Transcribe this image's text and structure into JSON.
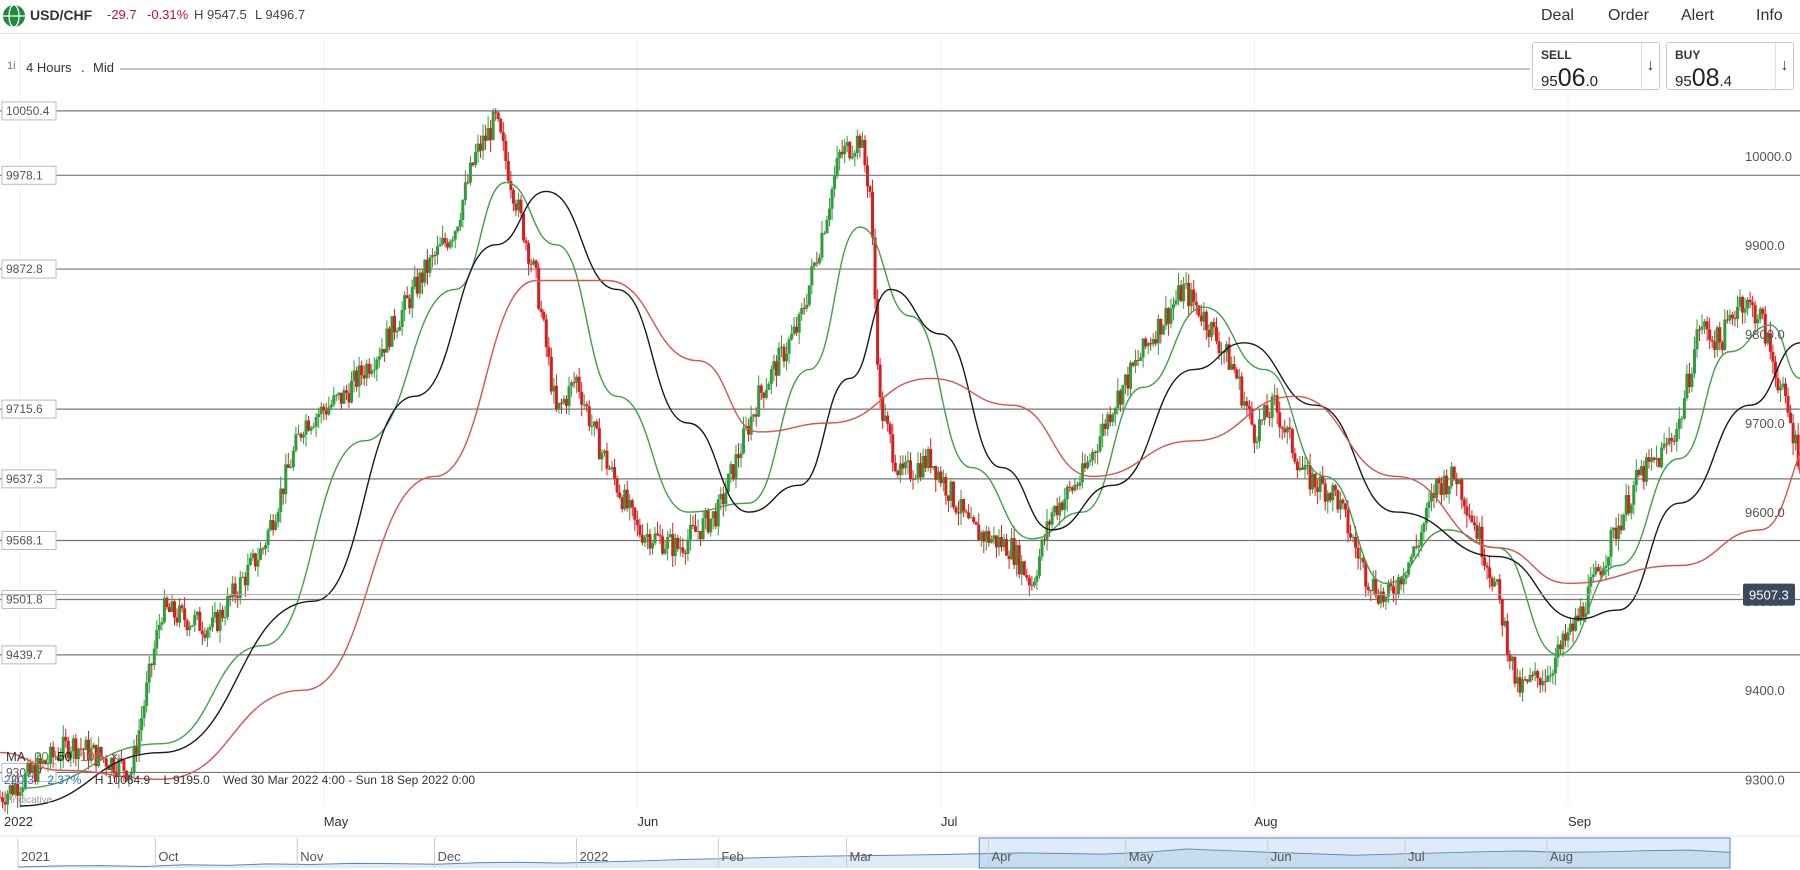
{
  "header": {
    "symbol": "USD/CHF",
    "change": "-29.7",
    "change_pct": "-0.31%",
    "high": "H 9547.5",
    "low": "L 9496.7",
    "buttons": [
      "Deal",
      "Order",
      "Alert",
      "Info"
    ]
  },
  "toolbar": {
    "interval_prefix": "1i",
    "timeframe": "4 Hours",
    "separator": ".",
    "price_type": "Mid"
  },
  "sell": {
    "label": "SELL",
    "prefix": "95",
    "big": "06",
    "suffix": ".0"
  },
  "buy": {
    "label": "BUY",
    "prefix": "95",
    "big": "08",
    "suffix": ".4"
  },
  "legend": {
    "ma_label": "MA",
    "ma_periods": [
      "20",
      "50",
      "100"
    ],
    "close": "×"
  },
  "info": {
    "value": "220.3",
    "pct": "2.37%",
    "high": "H 10064.9",
    "low": "L 9195.0",
    "range": "Wed 30 Mar 2022 4:00 - Sun 18 Sep 2022 0:00",
    "indicative": "Indicative"
  },
  "colors": {
    "up": "#2e9e3a",
    "down": "#d62020",
    "ma20": "#3fa04a",
    "ma50": "#1a1a1a",
    "ma100": "#d9534f",
    "current_price_bg": "#3a4a5c",
    "navigator_fill": "#b8d4ee"
  },
  "chart_data": {
    "type": "line",
    "title": "",
    "xlabel": "",
    "ylabel": "",
    "ylim": [
      9270,
      10130
    ],
    "y_ticks": [
      9300.0,
      9400.0,
      9500.0,
      9600.0,
      9700.0,
      9800.0,
      9900.0,
      10000.0
    ],
    "y_tick_labels": [
      "9300.0",
      "9400.0",
      "9500.0",
      "9600.0",
      "9700.0",
      "9800.0",
      "9900.0",
      "10000.0"
    ],
    "x_range": [
      "2022-03-30",
      "2022-09-18"
    ],
    "x_ticks": [
      {
        "date": "2022-04-01",
        "label": "2022"
      },
      {
        "date": "2022-05-01",
        "label": "May"
      },
      {
        "date": "2022-06-01",
        "label": "Jun"
      },
      {
        "date": "2022-07-01",
        "label": "Jul"
      },
      {
        "date": "2022-08-01",
        "label": "Aug"
      },
      {
        "date": "2022-09-01",
        "label": "Sep"
      }
    ],
    "current_price": {
      "value": 9507.3,
      "label": "9507.3"
    },
    "horizontal_levels": [
      {
        "value": 10050.4,
        "label": "10050.4"
      },
      {
        "value": 9978.1,
        "label": "9978.1"
      },
      {
        "value": 9872.8,
        "label": "9872.8"
      },
      {
        "value": 9715.6,
        "label": "9715.6"
      },
      {
        "value": 9637.3,
        "label": "9637.3"
      },
      {
        "value": 9568.1,
        "label": "9568.1"
      },
      {
        "value": 9501.8,
        "label": "9501.8"
      },
      {
        "value": 9439.7,
        "label": "9439.7"
      },
      {
        "value": 9307.7,
        "label": "9307.7"
      }
    ],
    "price_path": [
      {
        "date": "2022-03-30",
        "value": 9280
      },
      {
        "date": "2022-04-06",
        "value": 9340
      },
      {
        "date": "2022-04-12",
        "value": 9310
      },
      {
        "date": "2022-04-15",
        "value": 9490
      },
      {
        "date": "2022-04-20",
        "value": 9470
      },
      {
        "date": "2022-04-25",
        "value": 9560
      },
      {
        "date": "2022-04-29",
        "value": 9700
      },
      {
        "date": "2022-05-03",
        "value": 9730
      },
      {
        "date": "2022-05-07",
        "value": 9790
      },
      {
        "date": "2022-05-11",
        "value": 9870
      },
      {
        "date": "2022-05-14",
        "value": 9920
      },
      {
        "date": "2022-05-16",
        "value": 10000
      },
      {
        "date": "2022-05-18",
        "value": 10040
      },
      {
        "date": "2022-05-20",
        "value": 9950
      },
      {
        "date": "2022-05-22",
        "value": 9860
      },
      {
        "date": "2022-05-24",
        "value": 9710
      },
      {
        "date": "2022-05-26",
        "value": 9750
      },
      {
        "date": "2022-05-28",
        "value": 9680
      },
      {
        "date": "2022-06-01",
        "value": 9580
      },
      {
        "date": "2022-06-05",
        "value": 9560
      },
      {
        "date": "2022-06-09",
        "value": 9600
      },
      {
        "date": "2022-06-13",
        "value": 9730
      },
      {
        "date": "2022-06-17",
        "value": 9810
      },
      {
        "date": "2022-06-19",
        "value": 9900
      },
      {
        "date": "2022-06-21",
        "value": 10000
      },
      {
        "date": "2022-06-23",
        "value": 10020
      },
      {
        "date": "2022-06-24",
        "value": 9960
      },
      {
        "date": "2022-06-25",
        "value": 9720
      },
      {
        "date": "2022-06-27",
        "value": 9640
      },
      {
        "date": "2022-06-30",
        "value": 9660
      },
      {
        "date": "2022-07-04",
        "value": 9580
      },
      {
        "date": "2022-07-08",
        "value": 9560
      },
      {
        "date": "2022-07-10",
        "value": 9520
      },
      {
        "date": "2022-07-12",
        "value": 9600
      },
      {
        "date": "2022-07-15",
        "value": 9640
      },
      {
        "date": "2022-07-18",
        "value": 9720
      },
      {
        "date": "2022-07-22",
        "value": 9800
      },
      {
        "date": "2022-07-25",
        "value": 9850
      },
      {
        "date": "2022-07-27",
        "value": 9820
      },
      {
        "date": "2022-07-30",
        "value": 9760
      },
      {
        "date": "2022-08-01",
        "value": 9690
      },
      {
        "date": "2022-08-03",
        "value": 9720
      },
      {
        "date": "2022-08-06",
        "value": 9640
      },
      {
        "date": "2022-08-09",
        "value": 9620
      },
      {
        "date": "2022-08-12",
        "value": 9530
      },
      {
        "date": "2022-08-14",
        "value": 9500
      },
      {
        "date": "2022-08-17",
        "value": 9560
      },
      {
        "date": "2022-08-19",
        "value": 9630
      },
      {
        "date": "2022-08-21",
        "value": 9640
      },
      {
        "date": "2022-08-23",
        "value": 9580
      },
      {
        "date": "2022-08-25",
        "value": 9510
      },
      {
        "date": "2022-08-27",
        "value": 9400
      },
      {
        "date": "2022-08-30",
        "value": 9420
      },
      {
        "date": "2022-09-02",
        "value": 9480
      },
      {
        "date": "2022-09-05",
        "value": 9560
      },
      {
        "date": "2022-09-08",
        "value": 9640
      },
      {
        "date": "2022-09-10",
        "value": 9660
      },
      {
        "date": "2022-09-12",
        "value": 9700
      },
      {
        "date": "2022-09-14",
        "value": 9810
      },
      {
        "date": "2022-09-16",
        "value": 9790
      },
      {
        "date": "2022-09-18",
        "value": 9840
      },
      {
        "date": "2022-09-20",
        "value": 9820
      },
      {
        "date": "2022-09-23",
        "value": 9700
      },
      {
        "date": "2022-09-25",
        "value": 9610
      },
      {
        "date": "2022-09-27",
        "value": 9560
      },
      {
        "date": "2022-09-29",
        "value": 9507
      }
    ],
    "series": [
      {
        "name": "MA 20",
        "points": [
          {
            "date": "2022-04-01",
            "value": 9290
          },
          {
            "date": "2022-04-15",
            "value": 9340
          },
          {
            "date": "2022-04-25",
            "value": 9450
          },
          {
            "date": "2022-05-05",
            "value": 9680
          },
          {
            "date": "2022-05-14",
            "value": 9850
          },
          {
            "date": "2022-05-19",
            "value": 9970
          },
          {
            "date": "2022-05-24",
            "value": 9900
          },
          {
            "date": "2022-05-30",
            "value": 9730
          },
          {
            "date": "2022-06-06",
            "value": 9600
          },
          {
            "date": "2022-06-12",
            "value": 9610
          },
          {
            "date": "2022-06-18",
            "value": 9760
          },
          {
            "date": "2022-06-23",
            "value": 9920
          },
          {
            "date": "2022-06-28",
            "value": 9820
          },
          {
            "date": "2022-07-04",
            "value": 9650
          },
          {
            "date": "2022-07-10",
            "value": 9570
          },
          {
            "date": "2022-07-15",
            "value": 9600
          },
          {
            "date": "2022-07-21",
            "value": 9740
          },
          {
            "date": "2022-07-27",
            "value": 9830
          },
          {
            "date": "2022-08-02",
            "value": 9760
          },
          {
            "date": "2022-08-08",
            "value": 9640
          },
          {
            "date": "2022-08-14",
            "value": 9520
          },
          {
            "date": "2022-08-20",
            "value": 9580
          },
          {
            "date": "2022-08-25",
            "value": 9560
          },
          {
            "date": "2022-08-31",
            "value": 9440
          },
          {
            "date": "2022-09-06",
            "value": 9540
          },
          {
            "date": "2022-09-12",
            "value": 9660
          },
          {
            "date": "2022-09-17",
            "value": 9780
          },
          {
            "date": "2022-09-21",
            "value": 9810
          },
          {
            "date": "2022-09-24",
            "value": 9750
          },
          {
            "date": "2022-09-29",
            "value": 9600
          }
        ]
      },
      {
        "name": "MA 50",
        "points": [
          {
            "date": "2022-04-01",
            "value": 9270
          },
          {
            "date": "2022-04-15",
            "value": 9330
          },
          {
            "date": "2022-04-30",
            "value": 9500
          },
          {
            "date": "2022-05-10",
            "value": 9730
          },
          {
            "date": "2022-05-18",
            "value": 9900
          },
          {
            "date": "2022-05-23",
            "value": 9960
          },
          {
            "date": "2022-05-30",
            "value": 9850
          },
          {
            "date": "2022-06-06",
            "value": 9700
          },
          {
            "date": "2022-06-12",
            "value": 9600
          },
          {
            "date": "2022-06-17",
            "value": 9630
          },
          {
            "date": "2022-06-22",
            "value": 9750
          },
          {
            "date": "2022-06-26",
            "value": 9850
          },
          {
            "date": "2022-07-01",
            "value": 9800
          },
          {
            "date": "2022-07-07",
            "value": 9650
          },
          {
            "date": "2022-07-12",
            "value": 9580
          },
          {
            "date": "2022-07-18",
            "value": 9630
          },
          {
            "date": "2022-07-26",
            "value": 9760
          },
          {
            "date": "2022-07-31",
            "value": 9790
          },
          {
            "date": "2022-08-07",
            "value": 9720
          },
          {
            "date": "2022-08-15",
            "value": 9600
          },
          {
            "date": "2022-08-25",
            "value": 9550
          },
          {
            "date": "2022-09-02",
            "value": 9480
          },
          {
            "date": "2022-09-06",
            "value": 9490
          },
          {
            "date": "2022-09-12",
            "value": 9610
          },
          {
            "date": "2022-09-19",
            "value": 9720
          },
          {
            "date": "2022-09-24",
            "value": 9790
          },
          {
            "date": "2022-09-29",
            "value": 9730
          }
        ]
      },
      {
        "name": "MA 100",
        "points": [
          {
            "date": "2022-03-30",
            "value": 9330
          },
          {
            "date": "2022-04-05",
            "value": 9310
          },
          {
            "date": "2022-04-15",
            "value": 9300
          },
          {
            "date": "2022-04-29",
            "value": 9400
          },
          {
            "date": "2022-05-12",
            "value": 9640
          },
          {
            "date": "2022-05-22",
            "value": 9860
          },
          {
            "date": "2022-05-29",
            "value": 9860
          },
          {
            "date": "2022-06-07",
            "value": 9770
          },
          {
            "date": "2022-06-13",
            "value": 9690
          },
          {
            "date": "2022-06-20",
            "value": 9700
          },
          {
            "date": "2022-06-30",
            "value": 9750
          },
          {
            "date": "2022-07-08",
            "value": 9720
          },
          {
            "date": "2022-07-16",
            "value": 9640
          },
          {
            "date": "2022-07-26",
            "value": 9680
          },
          {
            "date": "2022-08-05",
            "value": 9730
          },
          {
            "date": "2022-08-15",
            "value": 9640
          },
          {
            "date": "2022-08-25",
            "value": 9560
          },
          {
            "date": "2022-09-01",
            "value": 9520
          },
          {
            "date": "2022-09-12",
            "value": 9540
          },
          {
            "date": "2022-09-20",
            "value": 9580
          },
          {
            "date": "2022-09-26",
            "value": 9690
          },
          {
            "date": "2022-09-29",
            "value": 9705
          }
        ]
      }
    ],
    "navigator": {
      "labels": [
        "2021",
        "Oct",
        "Nov",
        "Dec",
        "2022",
        "Feb",
        "Mar",
        "Apr",
        "May",
        "Jun",
        "Jul",
        "Aug"
      ],
      "label_dates": [
        "2021-09-01",
        "2021-10-01",
        "2021-11-01",
        "2021-12-01",
        "2022-01-01",
        "2022-02-01",
        "2022-03-01",
        "2022-04-01",
        "2022-05-01",
        "2022-06-01",
        "2022-07-01",
        "2022-08-01"
      ],
      "range": [
        "2021-09-01",
        "2022-09-10"
      ],
      "selected": [
        "2022-03-30",
        "2022-09-18"
      ],
      "values": [
        9180,
        9220,
        9230,
        9200,
        9260,
        9240,
        9290,
        9270,
        9310,
        9300,
        9280,
        9330,
        9350,
        9320,
        9360,
        9400,
        9450,
        9480,
        9520,
        9560,
        9580,
        9600,
        9620,
        9650,
        9680,
        9660,
        9640,
        9700,
        9820,
        9760,
        9700,
        9650,
        9600,
        9640,
        9680,
        9720,
        9750,
        9700,
        9720,
        9760,
        9780,
        9700
      ]
    }
  }
}
